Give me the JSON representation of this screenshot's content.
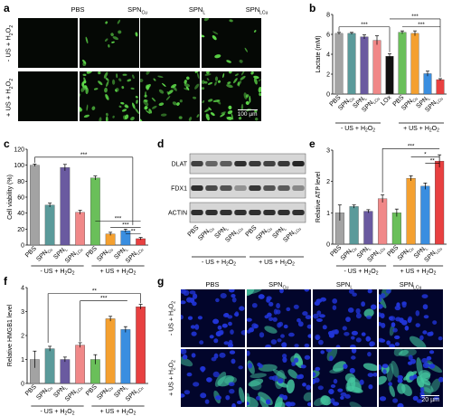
{
  "panel_a": {
    "label": "a",
    "columns": [
      "PBS",
      "SPN",
      "SPN",
      "SPN"
    ],
    "column_subscripts": [
      "",
      "Cu",
      "L",
      "LCu"
    ],
    "rows": [
      "- US + H",
      "+ US + H"
    ],
    "row_subscript": "2",
    "row_suffix": "O",
    "row_trailing_subscript": "2",
    "scale": "100 µm",
    "colors": {
      "bg": "#050805",
      "cell": "#5fdc4a"
    },
    "cell_density": [
      0.0,
      0.22,
      0.0,
      0.18,
      0.0,
      0.9,
      0.75,
      0.95
    ]
  },
  "panel_g": {
    "label": "g",
    "columns": [
      "PBS",
      "SPN",
      "SPN",
      "SPN"
    ],
    "column_subscripts": [
      "",
      "Cu",
      "L",
      "LCu"
    ],
    "rows": [
      "- US + H",
      "+ US + H"
    ],
    "scale": "20 µm",
    "colors": {
      "bg": "#02052b",
      "nucleus": "#2135d8",
      "hmgb1": "#44c8a0"
    },
    "green_level": [
      0.0,
      0.15,
      0.05,
      0.2,
      0.25,
      0.85,
      0.7,
      1.0
    ]
  },
  "panel_d": {
    "label": "d",
    "bands": [
      "DLAT",
      "FDX1",
      "ACTIN"
    ],
    "lanes": [
      "PBS",
      "SPN",
      "SPN",
      "SPN",
      "PBS",
      "SPN",
      "SPN",
      "SPN"
    ],
    "lane_subscripts": [
      "",
      "Cu",
      "L",
      "LCu",
      "",
      "Cu",
      "L",
      "LCu"
    ],
    "groups": [
      "- US + H",
      "+ US + H"
    ],
    "intensity": {
      "DLAT": [
        0.75,
        0.55,
        0.6,
        0.85,
        0.8,
        0.75,
        0.8,
        0.9
      ],
      "FDX1": [
        0.85,
        0.7,
        0.65,
        0.3,
        0.8,
        0.65,
        0.6,
        0.35
      ],
      "ACTIN": [
        0.85,
        0.85,
        0.85,
        0.85,
        0.85,
        0.85,
        0.85,
        0.85
      ]
    }
  },
  "group_labels": {
    "minus": "- US + H",
    "plus": "+ US + H",
    "sub": "2",
    "o": "O"
  },
  "chart_data": [
    {
      "panel": "b",
      "type": "bar",
      "ylabel": "Lactate (mM)",
      "ylim": [
        0,
        8
      ],
      "yticks": [
        0,
        2,
        4,
        6,
        8
      ],
      "categories": [
        "PBS",
        "SPN",
        "SPN",
        "SPN",
        "LOx",
        "PBS",
        "SPN",
        "SPN",
        "SPN"
      ],
      "category_subscripts": [
        "",
        "Cu",
        "L",
        "LCu",
        "",
        "",
        "Cu",
        "L",
        "LCu"
      ],
      "values": [
        6.1,
        6.1,
        5.75,
        5.4,
        3.8,
        6.2,
        6.1,
        2.05,
        1.45
      ],
      "errors": [
        0.1,
        0.1,
        0.2,
        0.45,
        0.25,
        0.15,
        0.25,
        0.25,
        0.1
      ],
      "colors": [
        "#a3a3a3",
        "#5a9a9a",
        "#6a5aa0",
        "#f08888",
        "#111111",
        "#6abf5a",
        "#f4a030",
        "#3a8ee0",
        "#e84040"
      ],
      "significance": [
        "***",
        "***",
        "***"
      ]
    },
    {
      "panel": "c",
      "type": "bar",
      "ylabel": "Cell viability (%)",
      "ylim": [
        0,
        120
      ],
      "yticks": [
        0,
        20,
        40,
        60,
        80,
        100,
        120
      ],
      "categories": [
        "PBS",
        "SPN",
        "SPN",
        "SPN",
        "PBS",
        "SPN",
        "SPN",
        "SPN"
      ],
      "category_subscripts": [
        "",
        "Cu",
        "L",
        "LCu",
        "",
        "Cu",
        "L",
        "LCu"
      ],
      "values": [
        100,
        50,
        97,
        41,
        84,
        14,
        18,
        8
      ],
      "errors": [
        1.5,
        2.5,
        4,
        2.5,
        2.5,
        2,
        2,
        1.5
      ],
      "colors": [
        "#a3a3a3",
        "#5a9a9a",
        "#6a5aa0",
        "#f08888",
        "#6abf5a",
        "#f4a030",
        "#3a8ee0",
        "#e84040"
      ],
      "significance": [
        "***",
        "***",
        "***",
        "**"
      ]
    },
    {
      "panel": "e",
      "type": "bar",
      "ylabel": "Relative ATP level",
      "ylim": [
        0,
        3
      ],
      "yticks": [
        0,
        1,
        2,
        3
      ],
      "categories": [
        "PBS",
        "SPN",
        "SPN",
        "SPN",
        "PBS",
        "SPN",
        "SPN",
        "SPN"
      ],
      "category_subscripts": [
        "",
        "Cu",
        "L",
        "LCu",
        "",
        "Cu",
        "L",
        "LCu"
      ],
      "values": [
        1.0,
        1.2,
        1.05,
        1.45,
        1.0,
        2.1,
        1.85,
        2.65
      ],
      "errors": [
        0.25,
        0.05,
        0.05,
        0.12,
        0.12,
        0.08,
        0.1,
        0.2
      ],
      "colors": [
        "#a3a3a3",
        "#5a9a9a",
        "#6a5aa0",
        "#f08888",
        "#6abf5a",
        "#f4a030",
        "#3a8ee0",
        "#e84040"
      ],
      "significance": [
        "***",
        "*",
        "**"
      ]
    },
    {
      "panel": "f",
      "type": "bar",
      "ylabel": "Relative HMGB1 level",
      "ylim": [
        0,
        4
      ],
      "yticks": [
        0,
        1,
        2,
        3,
        4
      ],
      "categories": [
        "PBS",
        "SPN",
        "SPN",
        "SPN",
        "PBS",
        "SPN",
        "SPN",
        "SPN"
      ],
      "category_subscripts": [
        "",
        "Cu",
        "L",
        "LCu",
        "",
        "Cu",
        "L",
        "LCu"
      ],
      "values": [
        1.0,
        1.45,
        1.0,
        1.6,
        1.0,
        2.7,
        2.25,
        3.2
      ],
      "errors": [
        0.35,
        0.1,
        0.1,
        0.1,
        0.2,
        0.1,
        0.12,
        0.1
      ],
      "colors": [
        "#a3a3a3",
        "#5a9a9a",
        "#6a5aa0",
        "#f08888",
        "#6abf5a",
        "#f4a030",
        "#3a8ee0",
        "#e84040"
      ],
      "significance": [
        "**",
        "***"
      ]
    }
  ]
}
